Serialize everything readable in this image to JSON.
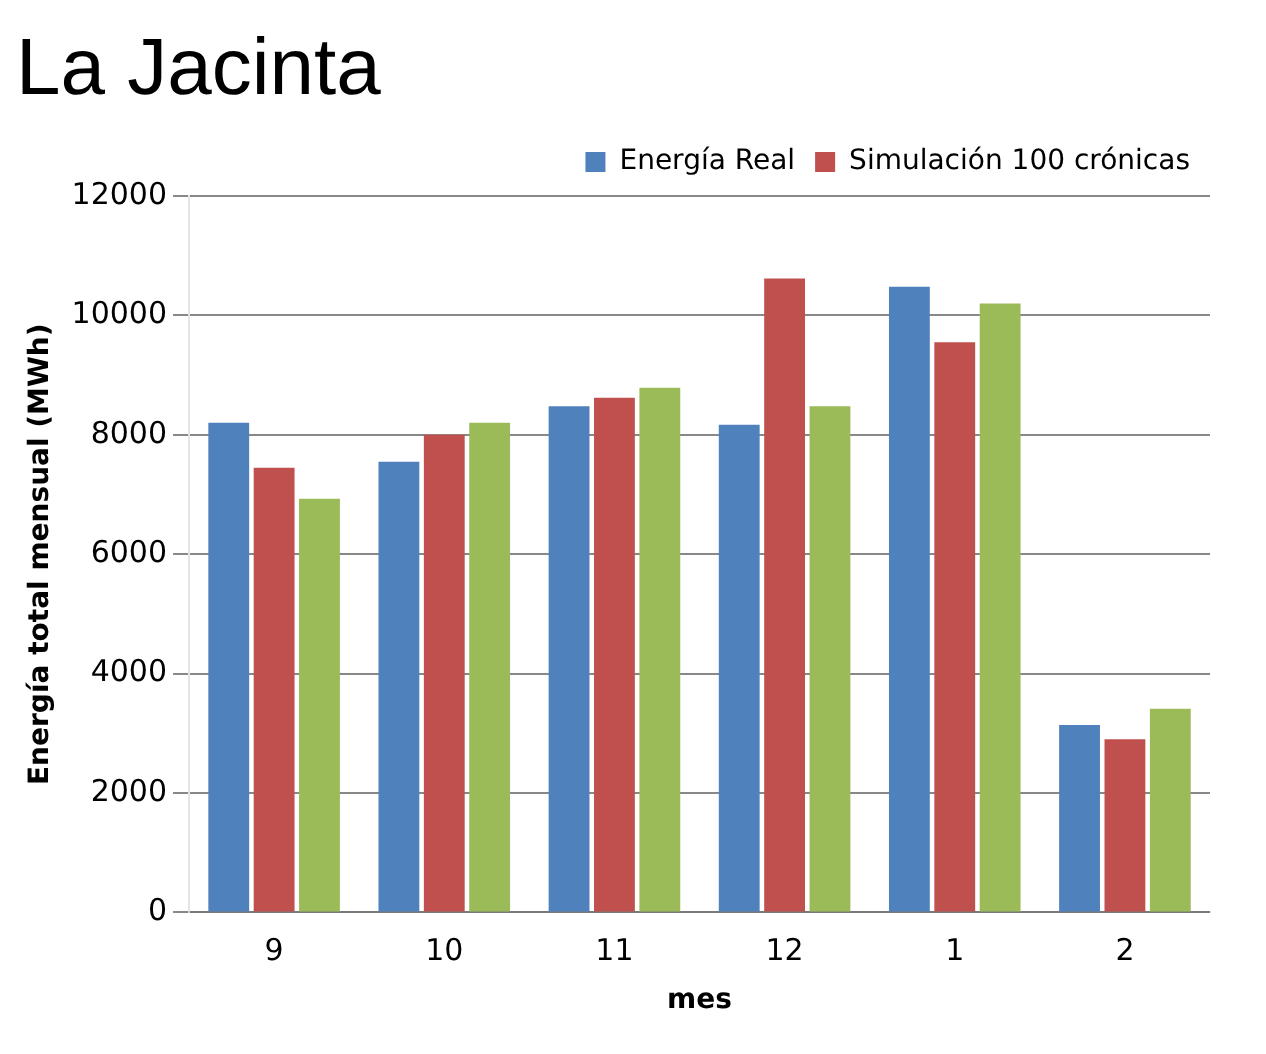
{
  "chart_data": {
    "type": "bar",
    "title": "La Jacinta",
    "xlabel": "mes",
    "ylabel": "Energía total mensual (MWh)",
    "categories": [
      "9",
      "10",
      "11",
      "12",
      "1",
      "2"
    ],
    "series": [
      {
        "name": "Energía Real",
        "color": "#4f81bd",
        "values": [
          8200,
          7550,
          8480,
          8170,
          10480,
          3140
        ]
      },
      {
        "name": "Simulación 100 crónicas",
        "color": "#c0504d",
        "values": [
          7450,
          8000,
          8620,
          10620,
          9550,
          2900
        ]
      },
      {
        "color": "#9bbb59",
        "values": [
          6930,
          8200,
          8790,
          8480,
          10200,
          3410
        ]
      }
    ],
    "ylim": [
      0,
      12000
    ],
    "yticks": [
      0,
      2000,
      4000,
      6000,
      8000,
      10000,
      12000
    ],
    "grid": "y",
    "legend": "top right"
  }
}
